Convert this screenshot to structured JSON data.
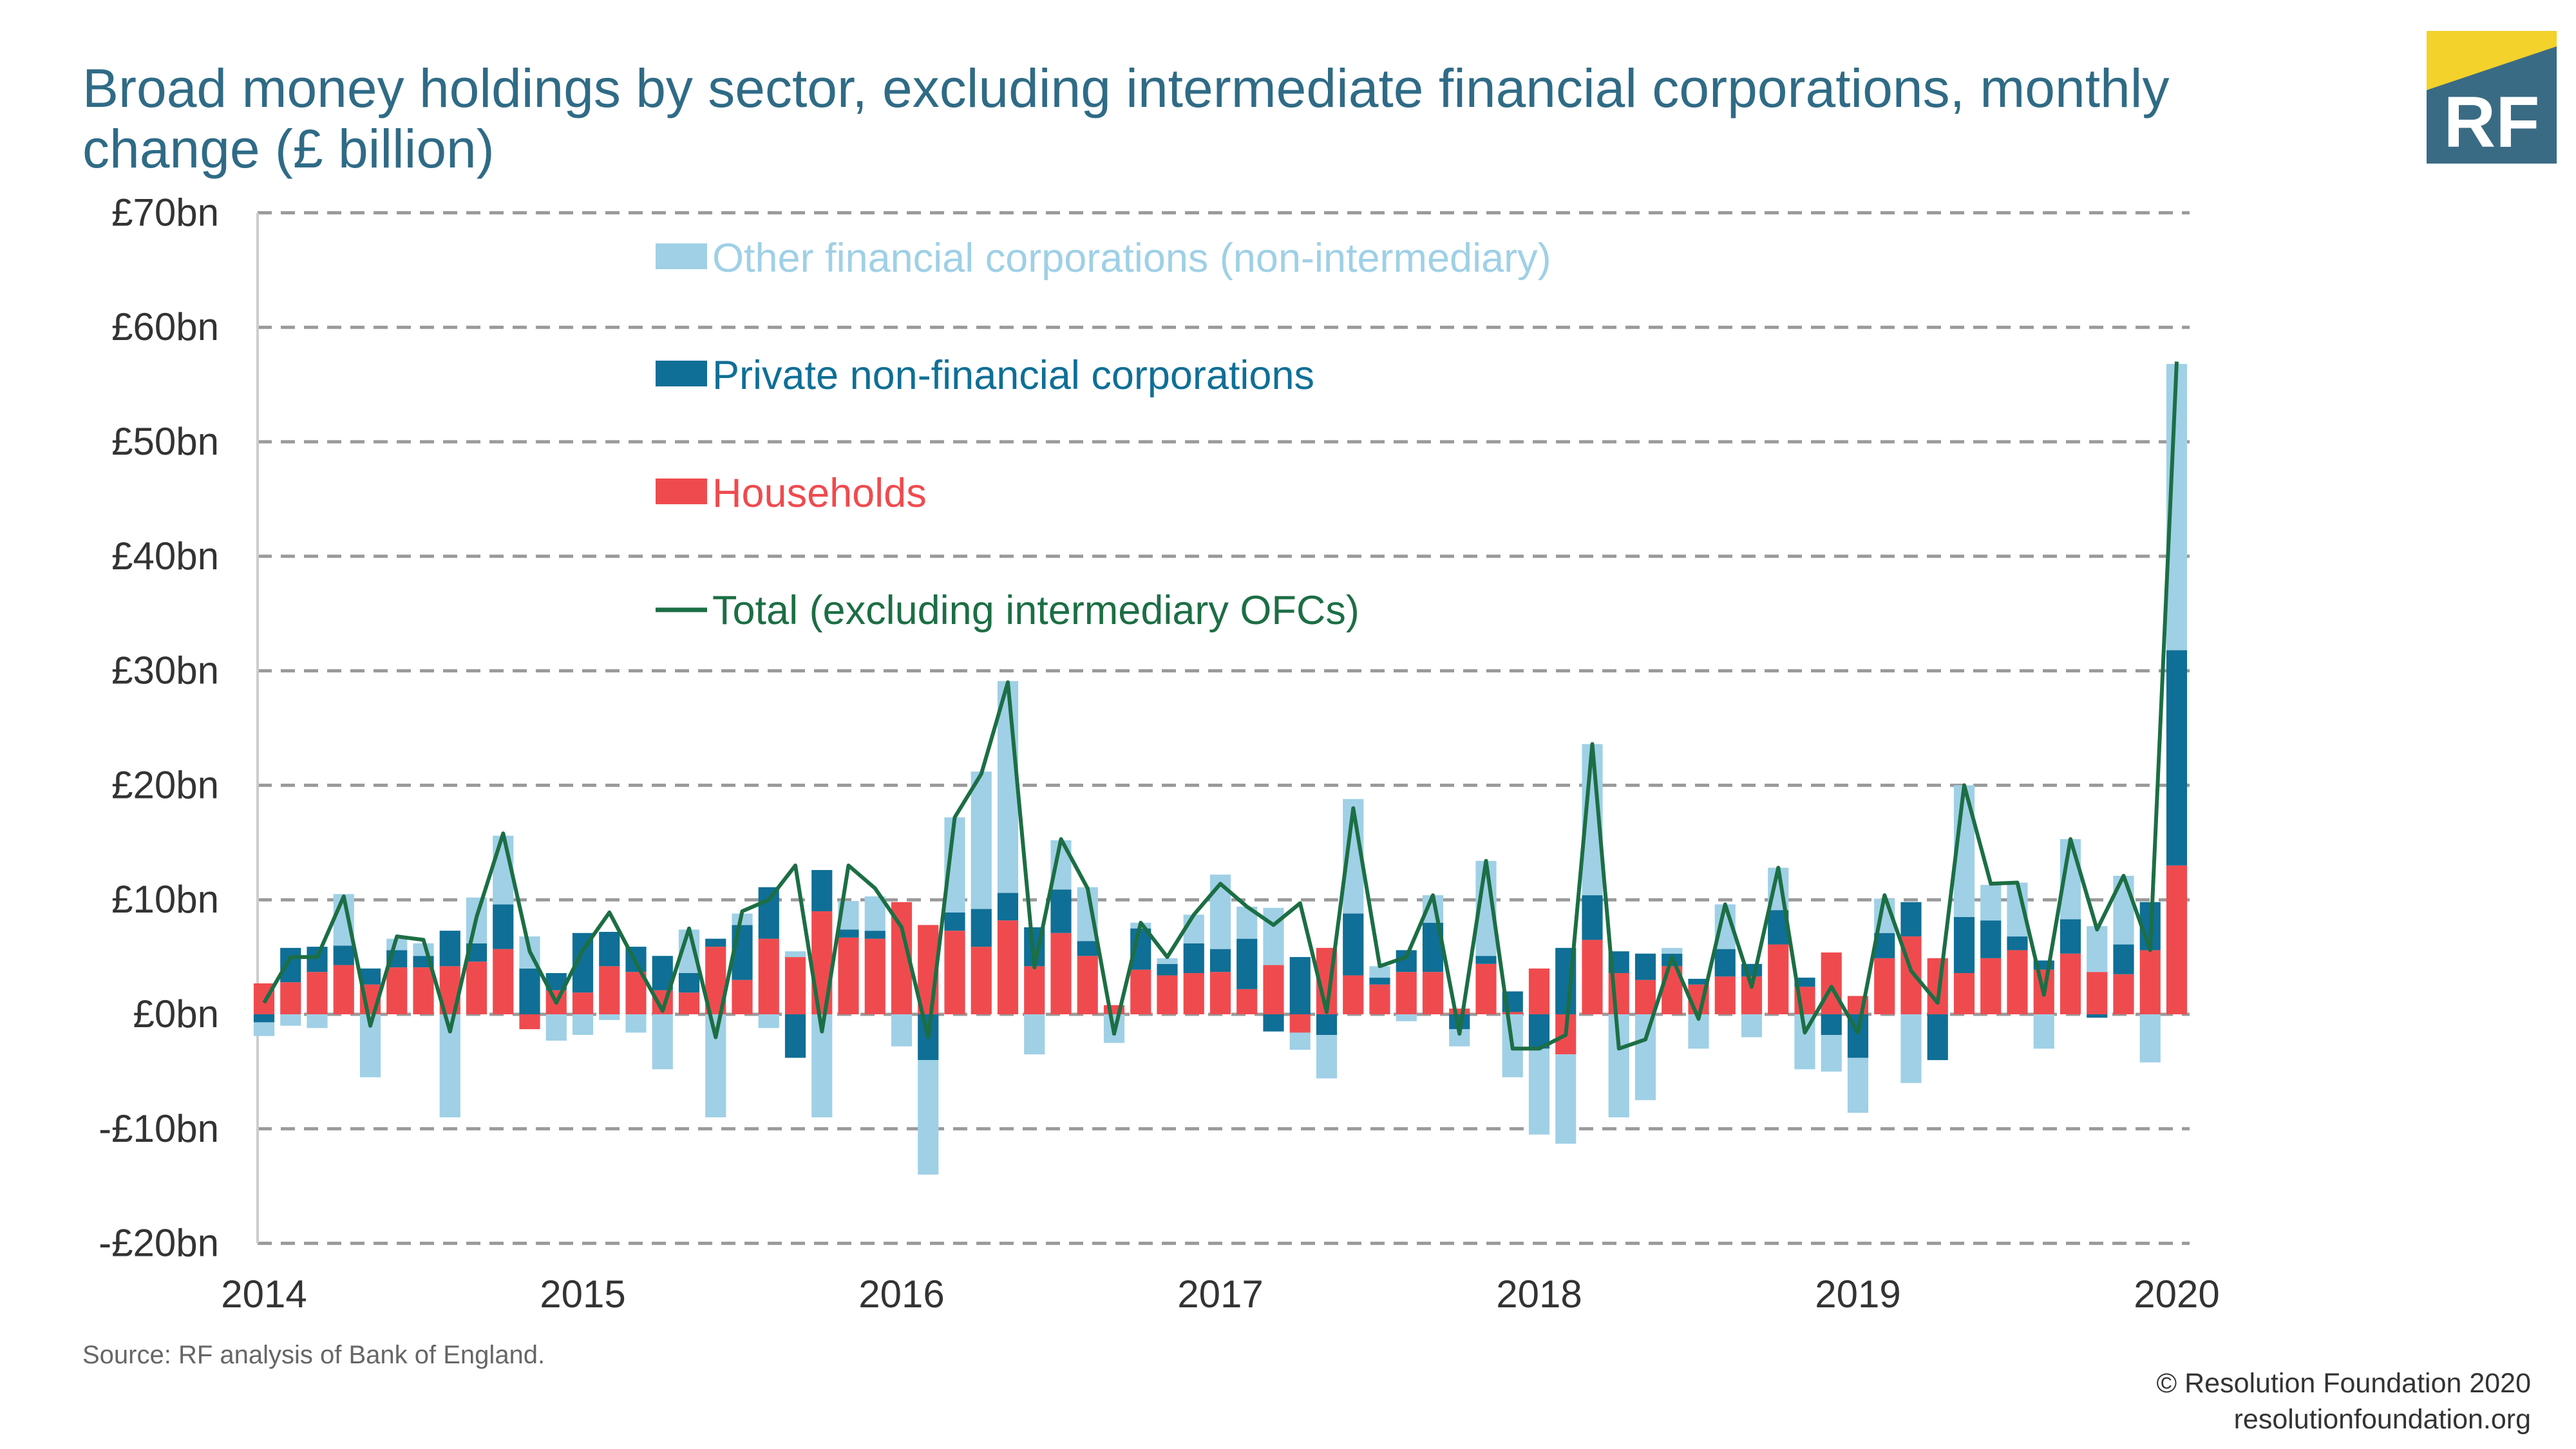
{
  "header": {
    "title": "Broad money holdings by sector, excluding intermediate financial corporations, monthly change (£ billion)"
  },
  "logo": {
    "text": "RF",
    "colors": {
      "box": "#3a6b85",
      "corner": "#f2d22b"
    }
  },
  "footer": {
    "source": "Source: RF analysis of Bank of England.",
    "copyright": "© Resolution Foundation 2020",
    "website": "resolutionfoundation.org"
  },
  "chart_data": {
    "type": "bar",
    "stacked": true,
    "title": "Broad money holdings by sector, excluding intermediate financial corporations, monthly change (£ billion)",
    "xlabel": "",
    "ylabel": "",
    "ylim": [
      -20,
      70
    ],
    "y_ticks": [
      -20,
      -10,
      0,
      10,
      20,
      30,
      40,
      50,
      60,
      70
    ],
    "y_tick_labels": [
      "-£20bn",
      "-£10bn",
      "£0bn",
      "£10bn",
      "£20bn",
      "£30bn",
      "£40bn",
      "£50bn",
      "£60bn",
      "£70bn"
    ],
    "x_tick_labels": [
      "2014",
      "2015",
      "2016",
      "2017",
      "2018",
      "2019",
      "2020"
    ],
    "x_range": [
      2014.0,
      2020.0
    ],
    "grid": true,
    "legend_position": "top-left",
    "colors": {
      "ofc": "#9fd0e6",
      "pnfc": "#0f6f96",
      "hh": "#ef4b4f",
      "total": "#1c6e44",
      "grid": "#9a9a9a",
      "axis": "#cccccc"
    },
    "series": [
      {
        "name": "Other financial corporations (non-intermediary)",
        "key": "ofc",
        "values": [
          -1.2,
          -1.0,
          -1.2,
          4.5,
          -5.5,
          1.0,
          1.1,
          -9.0,
          4.0,
          6.0,
          2.8,
          -2.3,
          -1.8,
          -0.5,
          -1.6,
          -4.8,
          3.8,
          -9.0,
          1.0,
          -1.2,
          0.5,
          -9.0,
          2.5,
          3.0,
          -2.8,
          -10.0,
          8.3,
          12.0,
          18.5,
          -3.5,
          4.3,
          4.7,
          -2.5,
          0.5,
          0.5,
          2.5,
          6.5,
          2.8,
          5.0,
          -1.5,
          -3.8,
          10.0,
          1.0,
          -0.6,
          2.4,
          -1.5,
          8.3,
          -5.5,
          -7.5,
          -7.8,
          13.2,
          -9.0,
          -7.5,
          0.5,
          -3.0,
          3.9,
          -2.0,
          3.7,
          -4.8,
          -3.2,
          -4.8,
          3.0,
          -6.0,
          0.0,
          11.5,
          3.1,
          4.7,
          -3.0,
          7.0,
          4.0,
          6.0,
          -4.2,
          25.0
        ]
      },
      {
        "name": "Private non-financial corporations",
        "key": "pnfc",
        "values": [
          -0.7,
          3.0,
          2.2,
          1.7,
          1.4,
          1.5,
          1.0,
          3.1,
          1.6,
          3.9,
          4.0,
          1.5,
          5.2,
          3.0,
          2.2,
          3.0,
          1.7,
          0.7,
          4.8,
          4.5,
          -3.8,
          3.6,
          0.7,
          0.7,
          0.0,
          -4.0,
          1.6,
          3.3,
          2.4,
          3.4,
          3.8,
          1.3,
          0.0,
          3.6,
          1.0,
          2.6,
          2.0,
          4.4,
          -1.5,
          5.0,
          -1.8,
          5.4,
          0.6,
          1.9,
          4.3,
          -1.3,
          0.7,
          1.8,
          -3.0,
          5.8,
          3.9,
          1.9,
          2.3,
          1.1,
          0.5,
          2.4,
          1.1,
          3.0,
          0.8,
          -1.8,
          -3.8,
          2.2,
          3.0,
          -4.0,
          4.9,
          3.3,
          1.2,
          0.8,
          3.0,
          -0.3,
          2.6,
          4.2,
          18.8
        ]
      },
      {
        "name": "Households",
        "key": "hh",
        "values": [
          2.7,
          2.8,
          3.7,
          4.3,
          2.6,
          4.1,
          4.1,
          4.2,
          4.6,
          5.7,
          -1.3,
          2.1,
          1.9,
          4.2,
          3.7,
          2.1,
          1.9,
          5.9,
          3.0,
          6.6,
          5.0,
          9.0,
          6.7,
          6.6,
          9.8,
          7.8,
          7.3,
          5.9,
          8.2,
          4.2,
          7.1,
          5.1,
          0.8,
          3.9,
          3.4,
          3.6,
          3.7,
          2.2,
          4.3,
          -1.6,
          5.8,
          3.4,
          2.6,
          3.7,
          3.7,
          0.5,
          4.4,
          0.2,
          4.0,
          -3.5,
          6.5,
          3.6,
          3.0,
          4.2,
          2.6,
          3.3,
          3.3,
          6.1,
          2.4,
          5.4,
          1.6,
          4.9,
          6.8,
          4.9,
          3.6,
          4.9,
          5.6,
          3.9,
          5.3,
          3.7,
          3.5,
          5.6,
          13.0
        ]
      },
      {
        "name": "Total (excluding intermediary OFCs)",
        "key": "total",
        "type": "line",
        "values": [
          1.0,
          5.0,
          5.0,
          10.3,
          -1.0,
          6.8,
          6.5,
          -1.5,
          8.5,
          15.8,
          5.5,
          1.0,
          5.6,
          8.9,
          4.5,
          0.3,
          7.5,
          -2.0,
          9.0,
          10.0,
          13.0,
          -1.5,
          13.0,
          11.0,
          7.6,
          -2.0,
          17.2,
          21.0,
          29.0,
          4.1,
          15.3,
          11.0,
          -1.7,
          8.0,
          5.0,
          8.7,
          11.4,
          9.4,
          7.8,
          9.7,
          0.2,
          18.0,
          4.2,
          5.0,
          10.4,
          -1.7,
          13.4,
          -3.0,
          -3.0,
          -1.8,
          23.6,
          -3.0,
          -2.2,
          5.0,
          -0.4,
          9.6,
          2.4,
          12.8,
          -1.6,
          2.4,
          -1.6,
          10.4,
          3.8,
          1.0,
          20.0,
          11.4,
          11.5,
          1.7,
          15.3,
          7.4,
          12.1,
          5.6,
          57.0
        ]
      }
    ]
  }
}
